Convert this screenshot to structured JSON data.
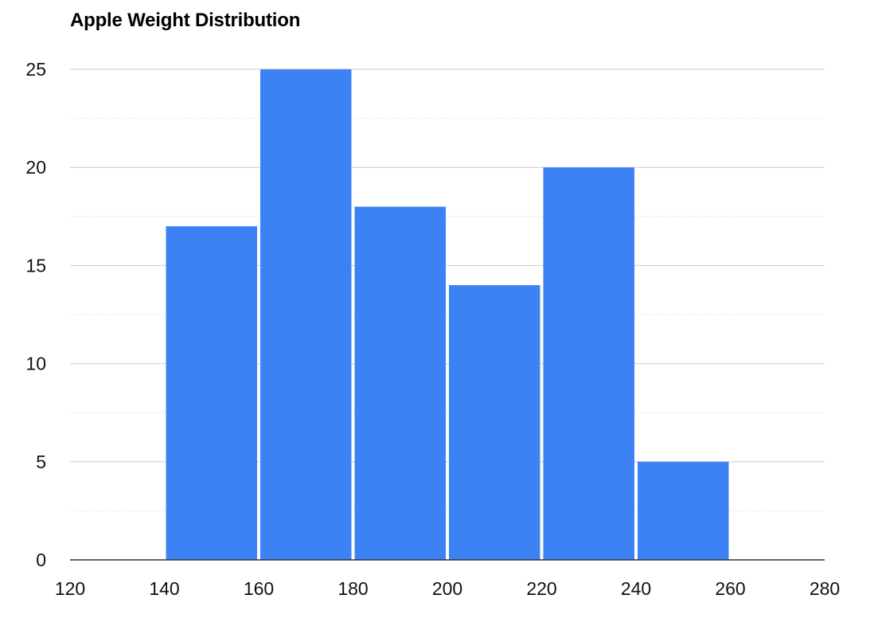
{
  "chart_data": {
    "type": "bar",
    "title": "Apple Weight Distribution",
    "xlabel": "",
    "ylabel": "",
    "bins": [
      {
        "start": 140,
        "end": 160,
        "count": 17
      },
      {
        "start": 160,
        "end": 180,
        "count": 25
      },
      {
        "start": 180,
        "end": 200,
        "count": 18
      },
      {
        "start": 200,
        "end": 220,
        "count": 14
      },
      {
        "start": 220,
        "end": 240,
        "count": 20
      },
      {
        "start": 240,
        "end": 260,
        "count": 5
      }
    ],
    "xlim": [
      120,
      280
    ],
    "ylim": [
      0,
      25
    ],
    "x_ticks": [
      "120",
      "140",
      "160",
      "180",
      "200",
      "220",
      "240",
      "260",
      "280"
    ],
    "y_ticks": [
      "0",
      "5",
      "10",
      "15",
      "20",
      "25"
    ],
    "grid": true,
    "minor_grid": true,
    "legend": "none",
    "colors": {
      "bar": "#3D82F4",
      "grid": "#CCCCCC",
      "minor_grid": "#E4E4E4",
      "axis": "#333333"
    }
  }
}
